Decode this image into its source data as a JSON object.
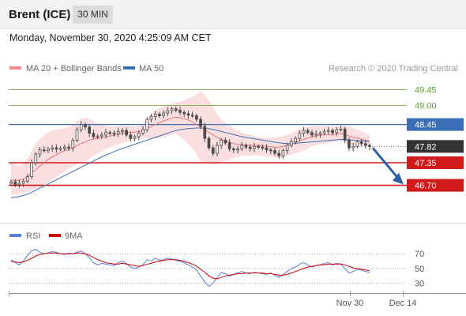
{
  "header": {
    "title": "Brent (ICE)",
    "timeframe": "30 MIN",
    "timestamp": "Monday, November 30, 2020 4:25:09 AM CET"
  },
  "legend": {
    "ma20_label": "MA 20 + Bollinger Bands",
    "ma50_label": "MA 50",
    "credit": "Research © 2020 Trading Central",
    "rsi_label": "RSI",
    "rsi_ma_label": "9MA"
  },
  "colors": {
    "candle": "#4a4a4a",
    "bollinger_fill": "#f9c9cb",
    "ma20": "#e87476",
    "ma50": "#3a6fb5",
    "resistance": "#5aa02c",
    "support": "#d11a1a",
    "pivot": "#3a6fb5",
    "last_price": "#333333",
    "rsi": "#5b7fd6",
    "rsi_ma": "#cc0000",
    "arrow": "#2d5fa6"
  },
  "chart_data": [
    {
      "type": "line",
      "title": "Brent (ICE) 30 MIN",
      "x_ticks": [
        "Nov 30",
        "Dec 14"
      ],
      "ylim": [
        45.85,
        49.85
      ],
      "levels": [
        {
          "role": "resistance",
          "value": 49.45,
          "label": "49.45"
        },
        {
          "role": "resistance",
          "value": 49.0,
          "label": "49.00"
        },
        {
          "role": "pivot",
          "value": 48.45,
          "label": "48.45"
        },
        {
          "role": "last",
          "value": 47.82,
          "label": "47.82"
        },
        {
          "role": "support",
          "value": 47.35,
          "label": "47.35"
        },
        {
          "role": "support",
          "value": 46.7,
          "label": "46.70"
        }
      ],
      "series": [
        {
          "name": "Price",
          "values": [
            46.8,
            46.72,
            46.76,
            46.82,
            46.95,
            47.35,
            47.6,
            47.72,
            47.7,
            47.75,
            47.78,
            47.74,
            47.76,
            47.8,
            47.78,
            48.0,
            48.3,
            48.45,
            48.38,
            48.2,
            48.1,
            48.12,
            48.15,
            48.22,
            48.2,
            48.18,
            48.25,
            48.28,
            48.15,
            48.05,
            48.1,
            48.2,
            48.3,
            48.6,
            48.68,
            48.75,
            48.7,
            48.78,
            48.85,
            48.9,
            48.86,
            48.8,
            48.76,
            48.72,
            48.7,
            48.6,
            48.4,
            48.05,
            47.78,
            47.62,
            47.85,
            48.0,
            47.92,
            47.75,
            47.72,
            47.75,
            47.85,
            47.8,
            47.76,
            47.82,
            47.8,
            47.78,
            47.72,
            47.7,
            47.62,
            47.55,
            47.7,
            47.85,
            47.95,
            48.05,
            48.2,
            48.28,
            48.22,
            48.15,
            48.18,
            48.2,
            48.25,
            48.28,
            48.22,
            48.3,
            48.32,
            48.0,
            47.78,
            47.82,
            47.95,
            47.9,
            47.85,
            47.82
          ]
        },
        {
          "name": "MA 20",
          "values": [
            46.85,
            46.84,
            46.85,
            46.88,
            46.95,
            47.05,
            47.15,
            47.25,
            47.35,
            47.45,
            47.52,
            47.58,
            47.65,
            47.7,
            47.74,
            47.78,
            47.84,
            47.9,
            47.95,
            48.0,
            48.03,
            48.06,
            48.08,
            48.1,
            48.12,
            48.14,
            48.17,
            48.2,
            48.22,
            48.22,
            48.23,
            48.25,
            48.28,
            48.33,
            48.39,
            48.45,
            48.5,
            48.55,
            48.6,
            48.63,
            48.66,
            48.65,
            48.62,
            48.58,
            48.52,
            48.45,
            48.38,
            48.3,
            48.22,
            48.15,
            48.08,
            48.02,
            47.98,
            47.94,
            47.9,
            47.88,
            47.87,
            47.86,
            47.85,
            47.85,
            47.84,
            47.83,
            47.82,
            47.81,
            47.8,
            47.8,
            47.82,
            47.85,
            47.89,
            47.93,
            47.98,
            48.02,
            48.06,
            48.1,
            48.12,
            48.14,
            48.15,
            48.16,
            48.17,
            48.18,
            48.19,
            48.16,
            48.12,
            48.08,
            48.06,
            48.03,
            48.0,
            47.97
          ]
        },
        {
          "name": "MA 50",
          "values": [
            46.35,
            46.36,
            46.38,
            46.41,
            46.45,
            46.5,
            46.56,
            46.62,
            46.68,
            46.74,
            46.8,
            46.86,
            46.92,
            46.98,
            47.04,
            47.1,
            47.16,
            47.22,
            47.28,
            47.34,
            47.4,
            47.46,
            47.52,
            47.57,
            47.62,
            47.67,
            47.72,
            47.76,
            47.8,
            47.84,
            47.88,
            47.92,
            47.96,
            48.0,
            48.04,
            48.08,
            48.12,
            48.16,
            48.2,
            48.24,
            48.28,
            48.3,
            48.32,
            48.33,
            48.34,
            48.35,
            48.35,
            48.34,
            48.33,
            48.31,
            48.28,
            48.25,
            48.22,
            48.19,
            48.16,
            48.13,
            48.1,
            48.08,
            48.06,
            48.04,
            48.02,
            48.0,
            47.98,
            47.96,
            47.94,
            47.92,
            47.91,
            47.9,
            47.9,
            47.91,
            47.92,
            47.93,
            47.94,
            47.95,
            47.96,
            47.97,
            47.98,
            47.99,
            48.0,
            48.01,
            48.02,
            48.02,
            48.01,
            48.0,
            47.99,
            47.98,
            47.97,
            47.96
          ]
        }
      ],
      "bollinger": {
        "upper": [
          47.35,
          47.3,
          47.28,
          47.32,
          47.45,
          47.7,
          47.9,
          48.05,
          48.15,
          48.22,
          48.28,
          48.3,
          48.32,
          48.35,
          48.38,
          48.45,
          48.55,
          48.62,
          48.64,
          48.62,
          48.55,
          48.48,
          48.45,
          48.42,
          48.4,
          48.38,
          48.4,
          48.42,
          48.42,
          48.4,
          48.38,
          48.4,
          48.48,
          48.62,
          48.75,
          48.85,
          48.92,
          48.98,
          49.02,
          49.05,
          49.08,
          49.1,
          49.15,
          49.2,
          49.25,
          49.3,
          49.4,
          49.3,
          49.15,
          48.95,
          48.75,
          48.6,
          48.5,
          48.42,
          48.35,
          48.28,
          48.22,
          48.18,
          48.14,
          48.12,
          48.1,
          48.08,
          48.06,
          48.06,
          48.08,
          48.1,
          48.12,
          48.15,
          48.2,
          48.26,
          48.32,
          48.36,
          48.38,
          48.4,
          48.4,
          48.4,
          48.4,
          48.4,
          48.4,
          48.4,
          48.4,
          48.42,
          48.4,
          48.35,
          48.3,
          48.25,
          48.2,
          48.15
        ],
        "lower": [
          46.45,
          46.42,
          46.45,
          46.48,
          46.52,
          46.55,
          46.6,
          46.65,
          46.72,
          46.8,
          46.88,
          46.95,
          47.02,
          47.1,
          47.18,
          47.25,
          47.3,
          47.35,
          47.4,
          47.48,
          47.55,
          47.62,
          47.68,
          47.74,
          47.8,
          47.84,
          47.88,
          47.92,
          47.95,
          47.98,
          48.02,
          48.05,
          48.06,
          48.05,
          48.04,
          48.05,
          48.06,
          48.08,
          48.12,
          48.15,
          48.18,
          48.1,
          48.0,
          47.88,
          47.75,
          47.6,
          47.4,
          47.35,
          47.32,
          47.3,
          47.32,
          47.36,
          47.4,
          47.44,
          47.48,
          47.52,
          47.54,
          47.55,
          47.56,
          47.56,
          47.56,
          47.55,
          47.54,
          47.52,
          47.5,
          47.48,
          47.5,
          47.54,
          47.58,
          47.62,
          47.66,
          47.7,
          47.76,
          47.82,
          47.86,
          47.88,
          47.9,
          47.92,
          47.94,
          47.96,
          47.98,
          47.92,
          47.84,
          47.8,
          47.8,
          47.8,
          47.8,
          47.8
        ]
      },
      "forecast_arrow": {
        "from": 47.82,
        "to": 46.7
      }
    },
    {
      "type": "line",
      "title": "RSI",
      "ylim": [
        20,
        82
      ],
      "y_ticks": [
        70,
        50,
        30
      ],
      "series": [
        {
          "name": "RSI",
          "values": [
            62,
            58,
            55,
            60,
            68,
            74,
            76,
            72,
            70,
            71,
            73,
            72,
            70,
            69,
            71,
            70,
            72,
            74,
            70,
            65,
            58,
            55,
            57,
            56,
            55,
            54,
            58,
            60,
            57,
            52,
            50,
            52,
            55,
            62,
            60,
            64,
            61,
            62,
            64,
            63,
            61,
            60,
            58,
            55,
            52,
            48,
            40,
            32,
            26,
            30,
            38,
            45,
            43,
            40,
            42,
            44,
            46,
            44,
            43,
            45,
            44,
            43,
            42,
            44,
            41,
            38,
            42,
            46,
            50,
            52,
            56,
            58,
            55,
            52,
            54,
            55,
            57,
            58,
            55,
            57,
            56,
            50,
            44,
            46,
            49,
            48,
            46,
            45
          ]
        },
        {
          "name": "9MA",
          "values": [
            60,
            59,
            58,
            59,
            61,
            64,
            67,
            69,
            70,
            71,
            71,
            71,
            70,
            70,
            70,
            70,
            71,
            71,
            70,
            68,
            65,
            62,
            60,
            58,
            57,
            56,
            56,
            57,
            56,
            55,
            54,
            53,
            54,
            56,
            57,
            59,
            60,
            61,
            62,
            62,
            62,
            61,
            60,
            58,
            56,
            53,
            49,
            45,
            40,
            37,
            36,
            38,
            40,
            41,
            42,
            43,
            43,
            44,
            44,
            44,
            44,
            44,
            43,
            43,
            42,
            41,
            41,
            42,
            44,
            46,
            48,
            50,
            52,
            53,
            54,
            55,
            55,
            56,
            56,
            56,
            56,
            55,
            53,
            51,
            50,
            49,
            48,
            47
          ]
        }
      ]
    }
  ]
}
